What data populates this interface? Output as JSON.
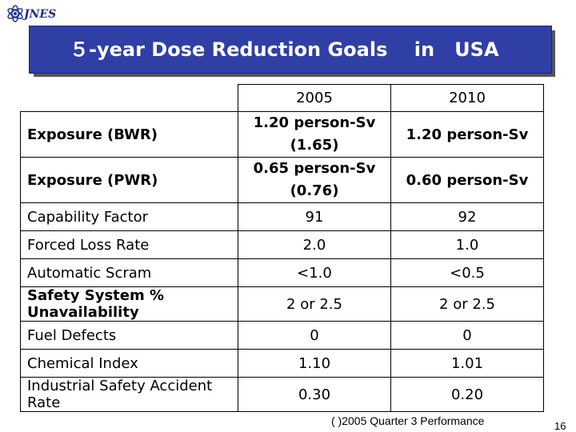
{
  "header": {
    "logo_text": "JNES",
    "title": "５-year Dose Reduction Goals    in   USA"
  },
  "table": {
    "columns": [
      "2005",
      "2010"
    ],
    "rows": [
      {
        "label": "Exposure (BWR)",
        "v2005": "1.20 person-Sv",
        "v2005_sub": "(1.65)",
        "v2010": "1.20 person-Sv"
      },
      {
        "label": "Exposure (PWR)",
        "v2005": "0.65 person-Sv",
        "v2005_sub": "(0.76)",
        "v2010": "0.60 person-Sv"
      },
      {
        "label": "Capability Factor",
        "v2005": "91",
        "v2010": "92"
      },
      {
        "label": "Forced Loss Rate",
        "v2005": "2.0",
        "v2010": "1.0"
      },
      {
        "label": "Automatic Scram",
        "v2005": "<1.0",
        "v2010": "<0.5"
      },
      {
        "label": "Safety System % Unavailability",
        "v2005": "2 or 2.5",
        "v2010": "2 or 2.5"
      },
      {
        "label": "Fuel Defects",
        "v2005": "0",
        "v2010": "0"
      },
      {
        "label": "Chemical Index",
        "v2005": "1.10",
        "v2010": "1.01"
      },
      {
        "label": "Industrial Safety Accident Rate",
        "v2005": "0.30",
        "v2010": "0.20"
      }
    ]
  },
  "footnote": "( )2005 Quarter 3 Performance",
  "page_number": "16",
  "colors": {
    "title_bg": "#2f3fa6",
    "logo": "#1b2e8a"
  }
}
